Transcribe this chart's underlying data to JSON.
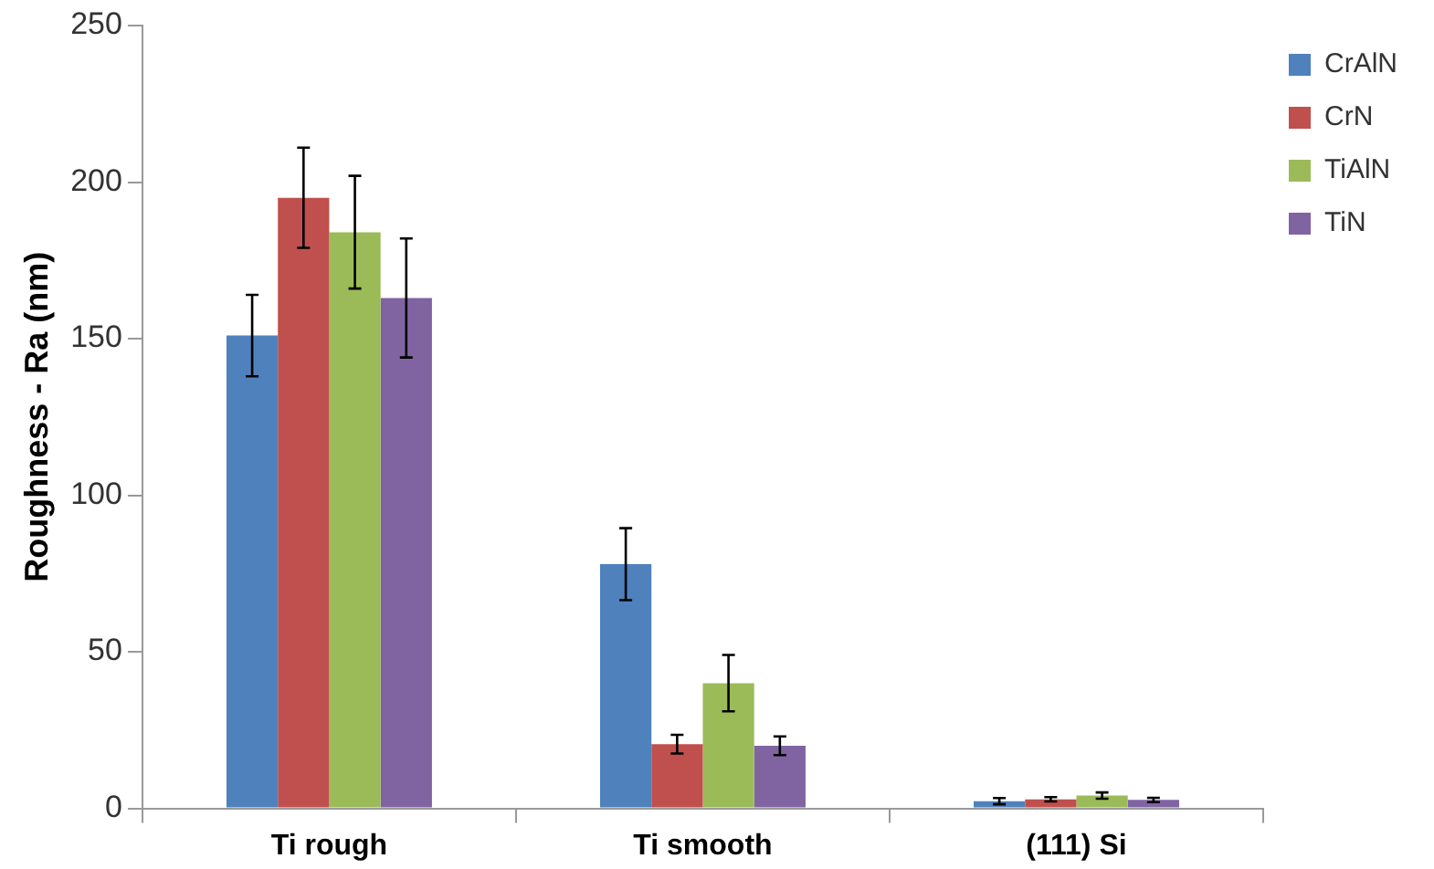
{
  "chart_data": {
    "type": "bar",
    "ylabel": "Roughness - Ra (nm)",
    "categories": [
      "Ti rough",
      "Ti smooth",
      "(111) Si"
    ],
    "series": [
      {
        "name": "CrAlN",
        "color": "#4f81bd",
        "values": [
          151,
          78,
          2.3
        ],
        "errors": [
          13,
          11.5,
          1
        ]
      },
      {
        "name": "CrN",
        "color": "#c0504d",
        "values": [
          195,
          20.5,
          2.9
        ],
        "errors": [
          16,
          3,
          0.7
        ]
      },
      {
        "name": "TiAlN",
        "color": "#9bbb59",
        "values": [
          184,
          40,
          4.1
        ],
        "errors": [
          18,
          9,
          1
        ]
      },
      {
        "name": "TiN",
        "color": "#8064a2",
        "values": [
          163,
          20,
          2.7
        ],
        "errors": [
          19,
          3,
          0.7
        ]
      }
    ],
    "ylim": [
      0,
      250
    ],
    "yticks": [
      0,
      50,
      100,
      150,
      200,
      250
    ],
    "grid": false,
    "legend": "top right"
  }
}
